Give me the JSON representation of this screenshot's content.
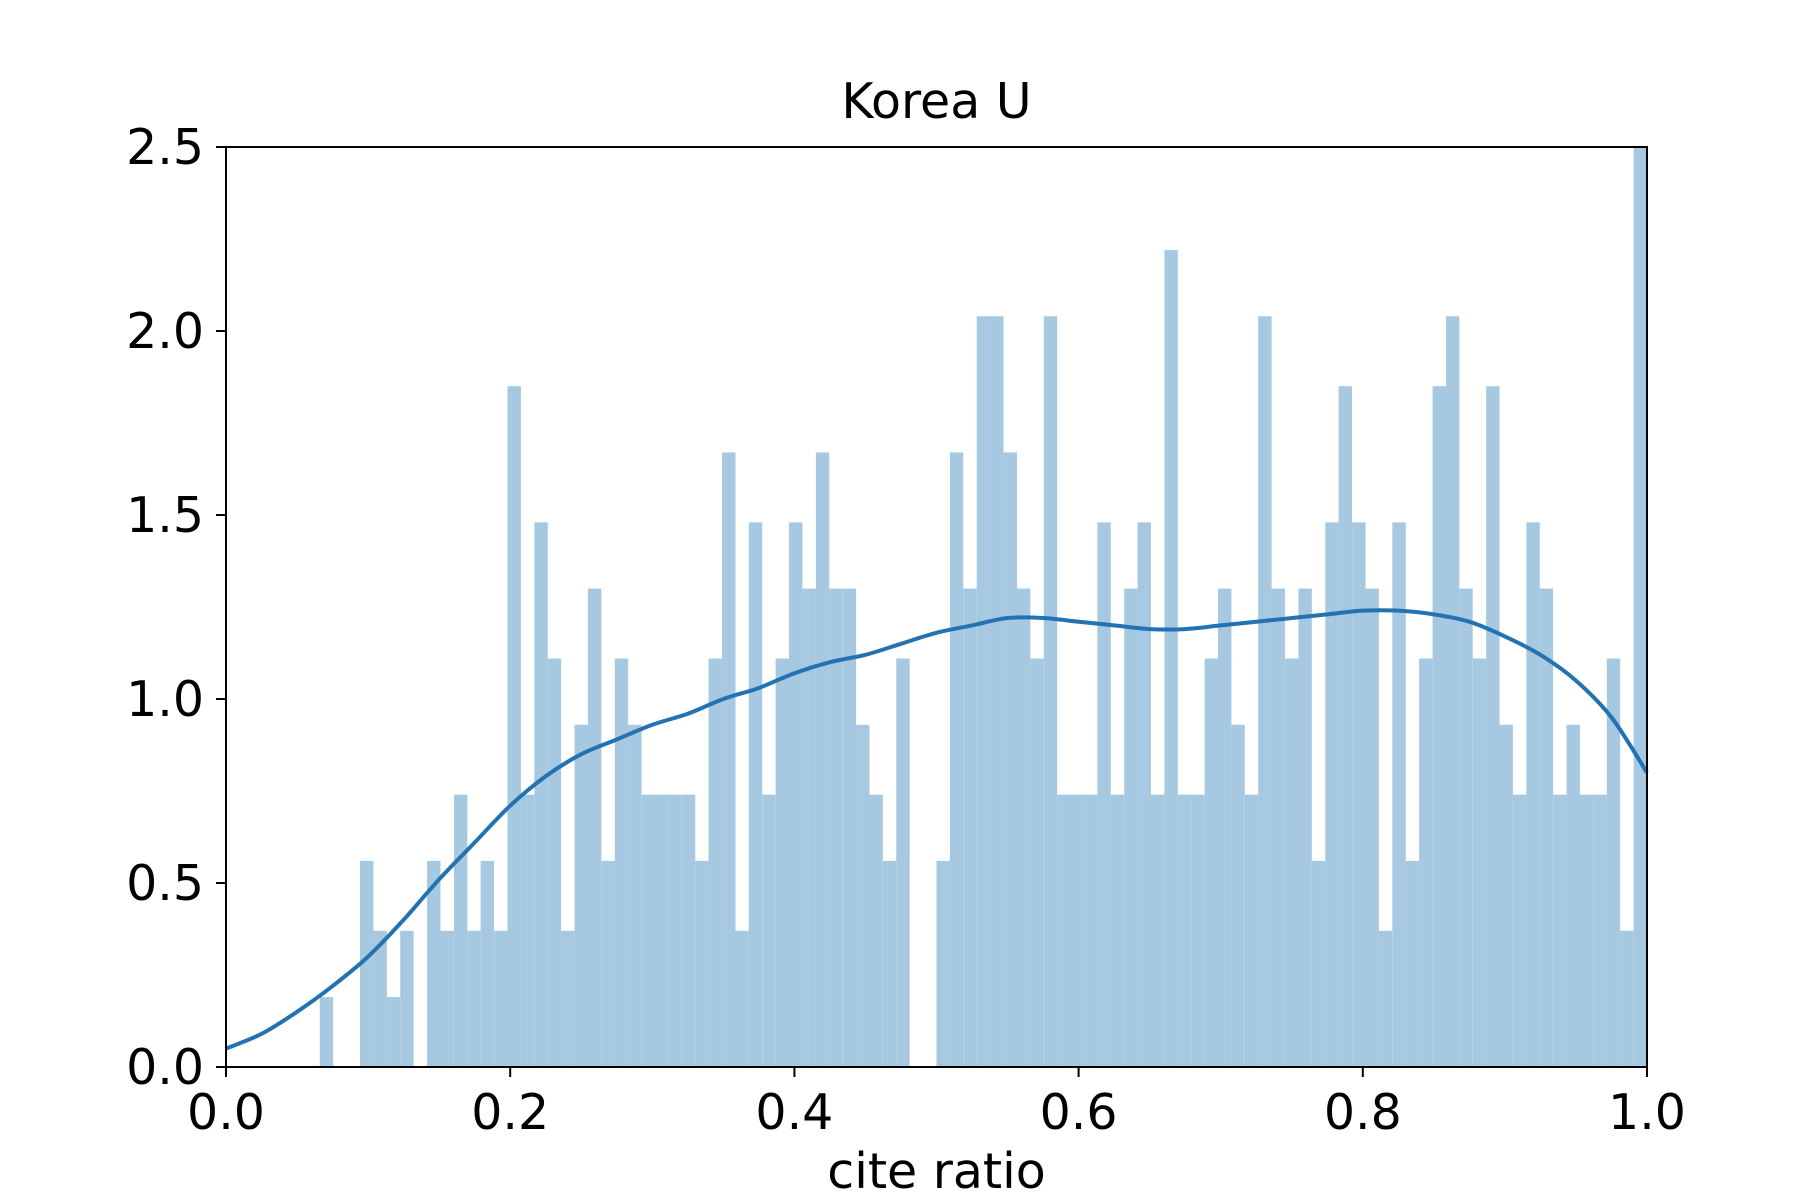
{
  "chart_data": {
    "type": "bar",
    "title": "Korea U",
    "xlabel": "cite ratio",
    "ylabel": "",
    "xlim": [
      0.0,
      1.0
    ],
    "ylim": [
      0.0,
      2.5
    ],
    "x_ticks": [
      "0.0",
      "0.2",
      "0.4",
      "0.6",
      "0.8",
      "1.0"
    ],
    "y_ticks": [
      "0.0",
      "0.5",
      "1.0",
      "1.5",
      "2.0",
      "2.5"
    ],
    "grid": false,
    "legend": "none",
    "colors": {
      "histogram": "#a6c8e1",
      "kde": "#2372b2",
      "axis": "#000000"
    },
    "histogram": {
      "bin_width": 0.00943,
      "bin_starts": [
        0.066,
        0.0943,
        0.1038,
        0.1132,
        0.1226,
        0.1415,
        0.1509,
        0.1604,
        0.1698,
        0.1792,
        0.1887,
        0.1981,
        0.2075,
        0.217,
        0.2264,
        0.2358,
        0.2453,
        0.2547,
        0.2642,
        0.2736,
        0.283,
        0.2925,
        0.3019,
        0.3113,
        0.3208,
        0.3302,
        0.3396,
        0.3491,
        0.3585,
        0.3679,
        0.3774,
        0.3868,
        0.3962,
        0.4057,
        0.4151,
        0.4245,
        0.434,
        0.4434,
        0.4528,
        0.4623,
        0.4717,
        0.4811,
        0.5,
        0.5094,
        0.5189,
        0.5283,
        0.5377,
        0.5472,
        0.5566,
        0.566,
        0.5755,
        0.5849,
        0.5943,
        0.6038,
        0.6132,
        0.6226,
        0.6321,
        0.6415,
        0.6509,
        0.6604,
        0.6698,
        0.6792,
        0.6887,
        0.6981,
        0.7075,
        0.717,
        0.7264,
        0.7358,
        0.7453,
        0.7547,
        0.7642,
        0.7736,
        0.783,
        0.7925,
        0.8019,
        0.8113,
        0.8208,
        0.8302,
        0.8396,
        0.8491,
        0.8585,
        0.8679,
        0.8774,
        0.8868,
        0.8962,
        0.9057,
        0.9151,
        0.9245,
        0.934,
        0.9434,
        0.9528,
        0.9623,
        0.9717,
        0.9811,
        0.9906
      ],
      "values": [
        0.19,
        0.56,
        0.37,
        0.19,
        0.37,
        0.56,
        0.37,
        0.74,
        0.37,
        0.56,
        0.37,
        1.85,
        0.74,
        1.48,
        1.11,
        0.37,
        0.93,
        1.3,
        0.56,
        1.11,
        0.93,
        0.74,
        0.74,
        0.74,
        0.74,
        0.56,
        1.11,
        1.67,
        0.37,
        1.48,
        0.74,
        1.11,
        1.48,
        1.3,
        1.67,
        1.3,
        1.3,
        0.93,
        0.74,
        0.56,
        1.11,
        0.0,
        0.56,
        1.67,
        1.3,
        2.04,
        2.04,
        1.67,
        1.3,
        1.11,
        2.04,
        0.74,
        0.74,
        0.74,
        1.48,
        0.74,
        1.3,
        1.48,
        0.74,
        2.22,
        0.74,
        0.74,
        1.11,
        1.3,
        0.93,
        0.74,
        2.04,
        1.3,
        1.11,
        1.3,
        0.56,
        1.48,
        1.85,
        1.48,
        1.3,
        0.37,
        1.48,
        0.56,
        1.11,
        1.85,
        2.04,
        1.3,
        1.11,
        1.85,
        0.93,
        0.74,
        1.48,
        1.3,
        0.74,
        0.93,
        0.74,
        0.74,
        1.11,
        0.37,
        2.5
      ]
    },
    "kde": {
      "name": "",
      "x": [
        0.0,
        0.025,
        0.05,
        0.075,
        0.1,
        0.125,
        0.15,
        0.175,
        0.2,
        0.225,
        0.25,
        0.275,
        0.3,
        0.325,
        0.35,
        0.375,
        0.4,
        0.425,
        0.45,
        0.475,
        0.5,
        0.525,
        0.55,
        0.575,
        0.6,
        0.625,
        0.65,
        0.675,
        0.7,
        0.725,
        0.75,
        0.775,
        0.8,
        0.825,
        0.85,
        0.875,
        0.9,
        0.925,
        0.95,
        0.975,
        1.0
      ],
      "y": [
        0.05,
        0.09,
        0.15,
        0.22,
        0.3,
        0.4,
        0.51,
        0.61,
        0.71,
        0.79,
        0.85,
        0.89,
        0.93,
        0.96,
        1.0,
        1.03,
        1.07,
        1.1,
        1.12,
        1.15,
        1.18,
        1.2,
        1.22,
        1.22,
        1.21,
        1.2,
        1.19,
        1.19,
        1.2,
        1.21,
        1.22,
        1.23,
        1.24,
        1.24,
        1.23,
        1.21,
        1.17,
        1.12,
        1.05,
        0.95,
        0.8
      ]
    }
  }
}
